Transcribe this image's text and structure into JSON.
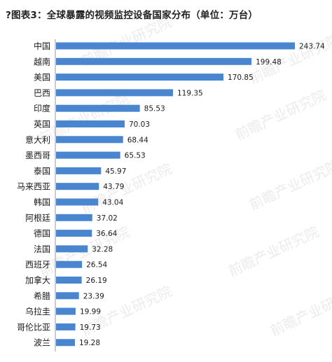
{
  "chart_data": {
    "type": "bar",
    "orientation": "horizontal",
    "title": "?图表3：全球暴露的视频监控设备国家分布（单位：万台）",
    "categories": [
      "中国",
      "越南",
      "美国",
      "巴西",
      "印度",
      "英国",
      "意大利",
      "墨西哥",
      "泰国",
      "马来西亚",
      "韩国",
      "阿根廷",
      "德国",
      "法国",
      "西班牙",
      "加拿大",
      "希腊",
      "乌拉圭",
      "哥伦比亚",
      "波兰"
    ],
    "values": [
      243.74,
      199.48,
      170.85,
      119.35,
      85.53,
      70.03,
      68.44,
      65.53,
      45.97,
      43.79,
      43.04,
      37.02,
      36.64,
      32.28,
      26.54,
      26.19,
      23.39,
      19.99,
      19.73,
      19.28
    ],
    "value_labels": [
      "243.74",
      "199.48",
      "170.85",
      "119.35",
      "85.53",
      "70.03",
      "68.44",
      "65.53",
      "45.97",
      "43.79",
      "43.04",
      "37.02",
      "36.64",
      "32.28",
      "26.54",
      "26.19",
      "23.39",
      "19.99",
      "19.73",
      "19.28"
    ],
    "bar_color": "#4a86d0",
    "xlim": [
      0,
      243.74
    ],
    "grid": false,
    "legend": "none"
  },
  "watermark": "前瞻产业研究院"
}
